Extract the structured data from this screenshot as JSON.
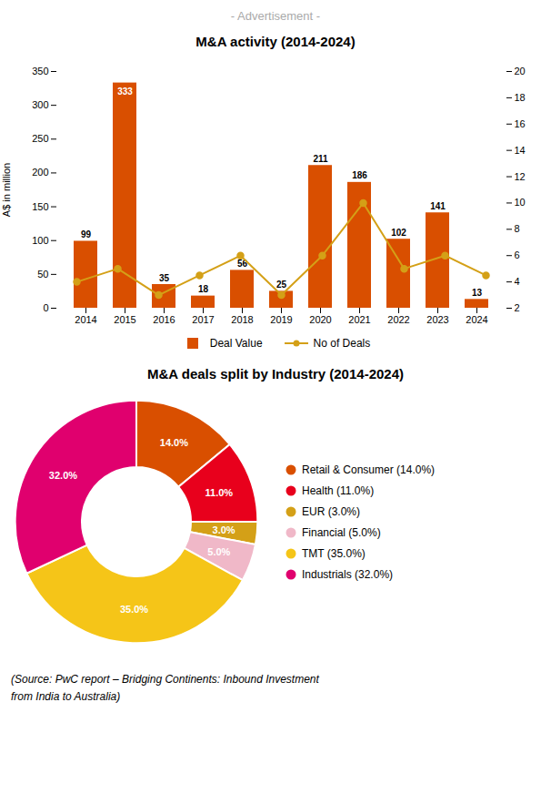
{
  "chart_data": [
    {
      "type": "bar",
      "title": "M&A activity (2014-2024)",
      "annotations": [
        "- Advertisement -"
      ],
      "categories": [
        "2014",
        "2015",
        "2016",
        "2017",
        "2018",
        "2019",
        "2020",
        "2021",
        "2022",
        "2023",
        "2024"
      ],
      "ylabel": "A$ in million",
      "series": [
        {
          "name": "Deal Value",
          "type": "bar",
          "color": "#d94f00",
          "values": [
            99,
            333,
            35,
            18,
            56,
            25,
            211,
            186,
            102,
            141,
            13
          ]
        },
        {
          "name": "No of Deals",
          "type": "line",
          "color": "#d4a017",
          "marker": "circle",
          "axis": "y2",
          "values": [
            4,
            5,
            3,
            4.5,
            6,
            3,
            6,
            10,
            5,
            6,
            4.5
          ]
        }
      ],
      "ylim": [
        0,
        350
      ],
      "yticks": [
        0,
        50,
        100,
        150,
        200,
        250,
        300,
        350
      ],
      "y2lim": [
        2,
        20
      ],
      "y2ticks": [
        2,
        4,
        6,
        8,
        10,
        12,
        14,
        16,
        18,
        20
      ],
      "grid": false,
      "legend": "bottom",
      "data_labels": true
    },
    {
      "type": "donut",
      "title": "M&A deals split by Industry (2014-2024)",
      "categories": [
        "Retail & Consumer (14.0%)",
        "Health (11.0%)",
        "EUR (3.0%)",
        "Financial (5.0%)",
        "TMT (35.0%)",
        "Industrials (32.0%)"
      ],
      "values": [
        14,
        11,
        3,
        5,
        35,
        32
      ],
      "value_labels": [
        "14.0%",
        "11.0%",
        "3.0%",
        "5.0%",
        "35.0%",
        "32.0%"
      ],
      "colors": [
        "#d94f00",
        "#e8001c",
        "#d4a017",
        "#f0b8c8",
        "#f5c518",
        "#e0006e"
      ],
      "legend": "right",
      "data_labels": true,
      "annotations": [
        "(Source: PwC report – Bridging Continents: Inbound Investment\nfrom India to Australia)"
      ]
    }
  ]
}
